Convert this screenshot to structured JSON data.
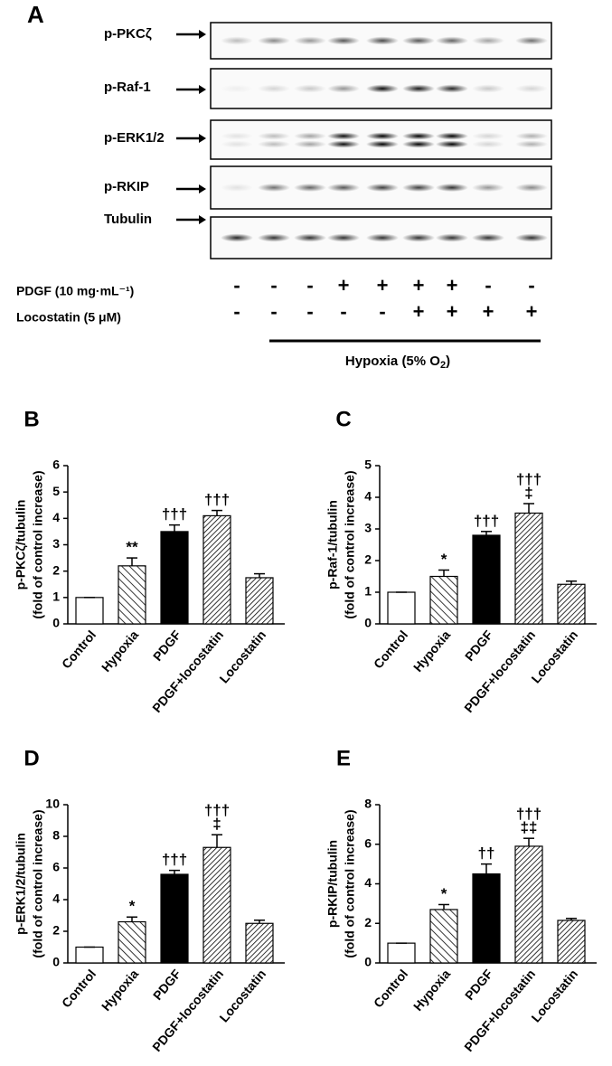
{
  "panel_a": {
    "label": "A",
    "proteins": [
      "p-PKCζ",
      "p-Raf-1",
      "p-ERK1/2",
      "p-RKIP",
      "Tubulin"
    ],
    "treatments": [
      {
        "name": "PDGF (10 mg·mL⁻¹)",
        "signs": [
          "-",
          "-",
          "-",
          "+",
          "+",
          "+",
          "+",
          "-",
          "-"
        ]
      },
      {
        "name": "Locostatin (5 μM)",
        "signs": [
          "-",
          "-",
          "-",
          "-",
          "-",
          "+",
          "+",
          "+",
          "+"
        ]
      }
    ],
    "hypoxia": {
      "text": "Hypoxia (5% O",
      "sub": "2",
      "tail": ")"
    }
  },
  "chart_data": [
    {
      "type": "bar",
      "panel": "B",
      "y_label": [
        "p-PKCζ/tubulin",
        "(fold of control increase)"
      ],
      "categories": [
        "Control",
        "Hypoxia",
        "PDGF",
        "PDGF+locostatin",
        "Locostatin"
      ],
      "values": [
        1,
        2.2,
        3.5,
        4.1,
        1.75
      ],
      "errors": [
        0,
        0.3,
        0.25,
        0.2,
        0.15
      ],
      "annotations": [
        null,
        [
          "**"
        ],
        [
          "†††"
        ],
        [
          "†††"
        ],
        null
      ],
      "patterns": [
        "none",
        "hatch-wide",
        "solid",
        "hatch",
        "hatch"
      ],
      "ylim": [
        0,
        6
      ],
      "yticks": [
        0,
        1,
        2,
        3,
        4,
        5,
        6
      ]
    },
    {
      "type": "bar",
      "panel": "C",
      "y_label": [
        "p-Raf-1/tubulin",
        "(fold of control increase)"
      ],
      "categories": [
        "Control",
        "Hypoxia",
        "PDGF",
        "PDGF+locostatin",
        "Locostatin"
      ],
      "values": [
        1,
        1.5,
        2.8,
        3.5,
        1.25
      ],
      "errors": [
        0,
        0.2,
        0.12,
        0.3,
        0.1
      ],
      "annotations": [
        null,
        [
          "*"
        ],
        [
          "†††"
        ],
        [
          "†††",
          "‡"
        ],
        null
      ],
      "patterns": [
        "none",
        "hatch-wide",
        "solid",
        "hatch",
        "hatch"
      ],
      "ylim": [
        0,
        5
      ],
      "yticks": [
        0,
        1,
        2,
        3,
        4,
        5
      ]
    },
    {
      "type": "bar",
      "panel": "D",
      "y_label": [
        "p-ERK1/2/tubulin",
        "(fold of control increase)"
      ],
      "categories": [
        "Control",
        "Hypoxia",
        "PDGF",
        "PDGF+locostatin",
        "Locostatin"
      ],
      "values": [
        1,
        2.6,
        5.6,
        7.3,
        2.5
      ],
      "errors": [
        0,
        0.3,
        0.25,
        0.8,
        0.2
      ],
      "annotations": [
        null,
        [
          "*"
        ],
        [
          "†††"
        ],
        [
          "†††",
          "‡"
        ],
        null
      ],
      "patterns": [
        "none",
        "hatch-wide",
        "solid",
        "hatch",
        "hatch"
      ],
      "ylim": [
        0,
        10
      ],
      "yticks": [
        0,
        2,
        4,
        6,
        8,
        10
      ]
    },
    {
      "type": "bar",
      "panel": "E",
      "y_label": [
        "p-RKIP/tubulin",
        "(fold of control increase)"
      ],
      "categories": [
        "Control",
        "Hypoxia",
        "PDGF",
        "PDGF+locostatin",
        "Locostatin"
      ],
      "values": [
        1,
        2.7,
        4.5,
        5.9,
        2.15
      ],
      "errors": [
        0,
        0.25,
        0.5,
        0.4,
        0.1
      ],
      "annotations": [
        null,
        [
          "*"
        ],
        [
          "††"
        ],
        [
          "†††",
          "‡‡"
        ],
        null
      ],
      "patterns": [
        "none",
        "hatch-wide",
        "solid",
        "hatch",
        "hatch"
      ],
      "ylim": [
        0,
        8
      ],
      "yticks": [
        0,
        2,
        4,
        6,
        8
      ]
    }
  ]
}
